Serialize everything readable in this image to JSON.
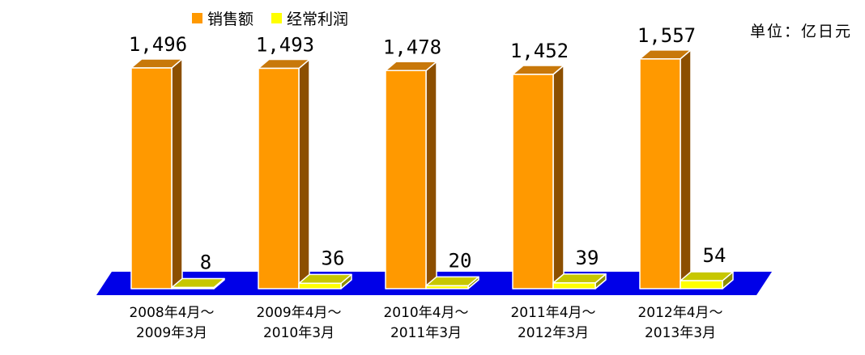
{
  "chart_data": {
    "type": "bar",
    "title": "",
    "unit": "单位：亿日元",
    "legend_position": "top-left",
    "grid": false,
    "categories": [
      [
        "2008年4月～",
        "2009年3月"
      ],
      [
        "2009年4月～",
        "2010年3月"
      ],
      [
        "2010年4月～",
        "2011年3月"
      ],
      [
        "2011年4月～",
        "2012年3月"
      ],
      [
        "2012年4月～",
        "2013年3月"
      ]
    ],
    "series": [
      {
        "name": "销售额",
        "values": [
          1496,
          1493,
          1478,
          1452,
          1557
        ],
        "labels": [
          "1,496",
          "1,493",
          "1,478",
          "1,452",
          "1,557"
        ]
      },
      {
        "name": "经常利润",
        "values": [
          8,
          36,
          20,
          39,
          54
        ],
        "labels": [
          "8",
          "36",
          "20",
          "39",
          "54"
        ]
      }
    ],
    "colors": {
      "sales_front": "#ff9900",
      "sales_side": "#8c4f00",
      "sales_top": "#c8780a",
      "profit_front": "#ffff00",
      "profit_side": "#8f8f00",
      "profit_top": "#c7c700",
      "floor": "#0000e8"
    }
  }
}
